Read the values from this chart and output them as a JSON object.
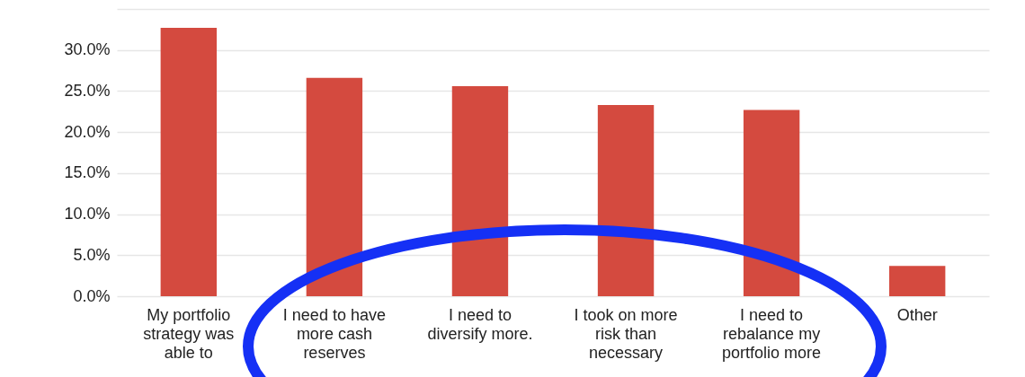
{
  "chart_data": {
    "type": "bar",
    "categories": [
      "My portfolio strategy was able to",
      "I need to have more cash reserves",
      "I need to diversify more.",
      "I took on more risk than necessary",
      "I need to rebalance my portfolio more",
      "Other"
    ],
    "values": [
      32.7,
      26.6,
      25.6,
      23.3,
      22.7,
      3.7
    ],
    "color": "#d44a3f",
    "ylim": [
      0,
      35
    ],
    "yticks": [
      {
        "value": 0,
        "label": "0.0%"
      },
      {
        "value": 5,
        "label": "5.0%"
      },
      {
        "value": 10,
        "label": "10.0%"
      },
      {
        "value": 15,
        "label": "15.0%"
      },
      {
        "value": 20,
        "label": "20.0%"
      },
      {
        "value": 25,
        "label": "25.0%"
      },
      {
        "value": 30,
        "label": "30.0%"
      },
      {
        "value": 35,
        "label": null
      }
    ],
    "grid": "y"
  }
}
